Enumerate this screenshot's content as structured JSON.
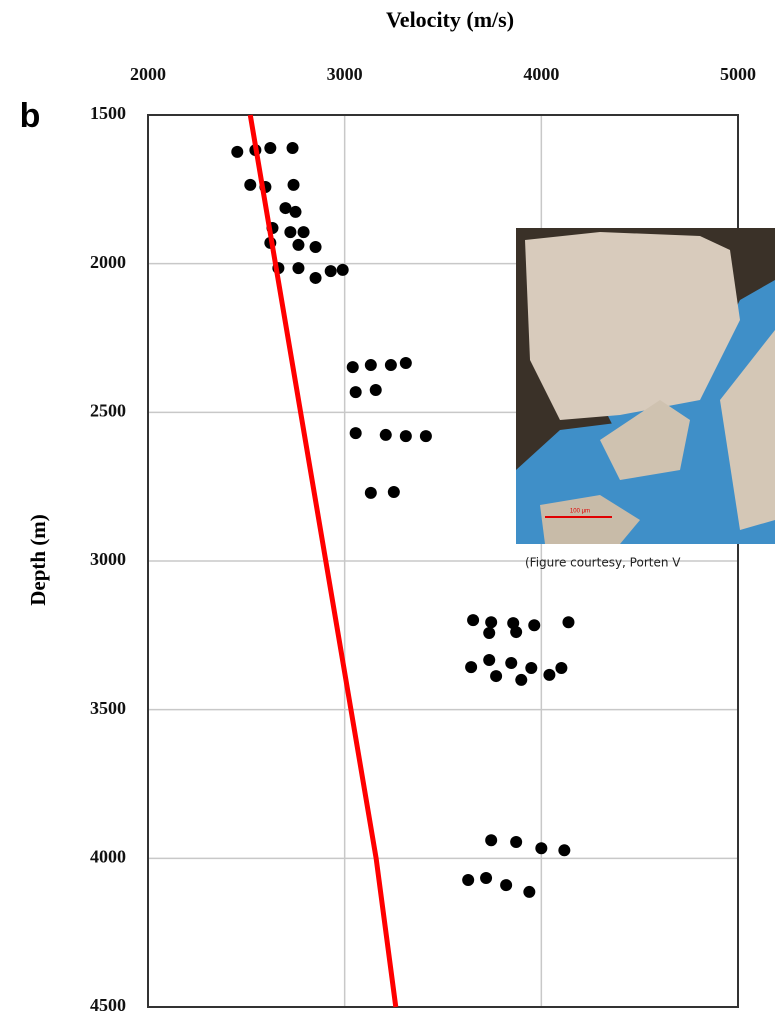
{
  "chart_data": {
    "type": "scatter",
    "title": "Velocity (m/s)",
    "y_label": "Depth (m)",
    "panel_label": "b",
    "xlim": [
      2000,
      5000
    ],
    "xticks": [
      2000,
      3000,
      4000,
      5000
    ],
    "ylim": [
      4500,
      1500
    ],
    "yticks": [
      1500,
      2000,
      2500,
      3000,
      3500,
      4000,
      4500
    ],
    "grid": true,
    "series": [
      {
        "mode": "markers",
        "color": "#000000",
        "x": [
          2454,
          2546,
          2622,
          2735,
          2520,
          2597,
          2740,
          2699,
          2750,
          2633,
          2724,
          2791,
          2622,
          2765,
          2852,
          2663,
          2765,
          2852,
          2929,
          2990,
          3041,
          3133,
          3235,
          3311,
          3056,
          3158,
          3056,
          3209,
          3311,
          3413,
          3133,
          3250,
          3653,
          3745,
          3857,
          3964,
          4138,
          3735,
          3872,
          3643,
          3735,
          3847,
          3949,
          4102,
          3770,
          3898,
          4041,
          3745,
          3872,
          4000,
          4117,
          3628,
          3719,
          3821,
          3939
        ],
        "y": [
          1624,
          1618,
          1611,
          1611,
          1735,
          1742,
          1735,
          1813,
          1826,
          1880,
          1894,
          1894,
          1930,
          1937,
          1944,
          2015,
          2015,
          2048,
          2025,
          2021,
          2348,
          2341,
          2341,
          2334,
          2432,
          2425,
          2570,
          2576,
          2580,
          2580,
          2771,
          2768,
          3199,
          3206,
          3209,
          3216,
          3206,
          3242,
          3239,
          3357,
          3333,
          3343,
          3360,
          3360,
          3387,
          3400,
          3383,
          3939,
          3945,
          3966,
          3973,
          4073,
          4066,
          4090,
          4113
        ]
      },
      {
        "mode": "line",
        "color": "#ff0000",
        "x": [
          2520,
          3160,
          3260
        ],
        "y": [
          1500,
          4000,
          4500
        ]
      }
    ],
    "inset": {
      "caption": "(Figure courtesy, Porten V",
      "scale_bar": "100 μm"
    }
  }
}
